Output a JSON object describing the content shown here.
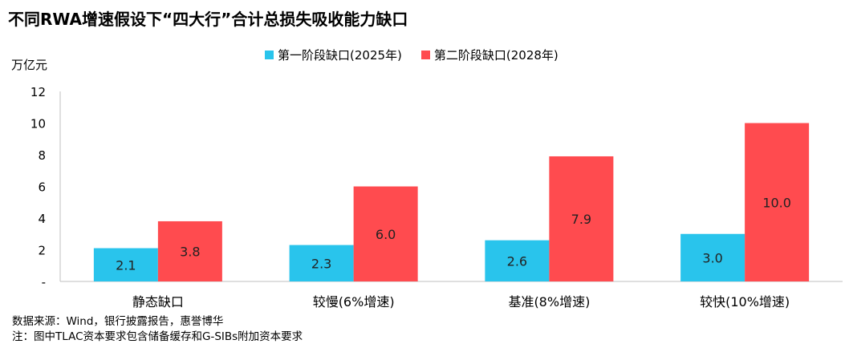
{
  "chart_data": {
    "type": "bar",
    "title": "不同RWA增速假设下“四大行”合计总损失吸收能力缺口",
    "ylabel": "万亿元",
    "ylim": [
      0,
      12
    ],
    "yticks": [
      "-",
      "2",
      "4",
      "6",
      "8",
      "10",
      "12"
    ],
    "grid": false,
    "legend_position": "top",
    "categories": [
      "静态缺口",
      "较慢(6%增速)",
      "基准(8%增速)",
      "较快(10%增速)"
    ],
    "series": [
      {
        "name": "第一阶段缺口(2025年)",
        "color": "#29C4EC",
        "values": [
          2.1,
          2.3,
          2.6,
          3.0
        ],
        "labels": [
          "2.1",
          "2.3",
          "2.6",
          "3.0"
        ]
      },
      {
        "name": "第二阶段缺口(2028年)",
        "color": "#FF4B4F",
        "values": [
          3.8,
          6.0,
          7.9,
          10.0
        ],
        "labels": [
          "3.8",
          "6.0",
          "7.9",
          "10.0"
        ]
      }
    ]
  },
  "notes": {
    "source": "数据来源：Wind，银行披露报告，惠誉博华",
    "note": "注：图中TLAC资本要求包含储备缓存和G-SIBs附加资本要求"
  }
}
